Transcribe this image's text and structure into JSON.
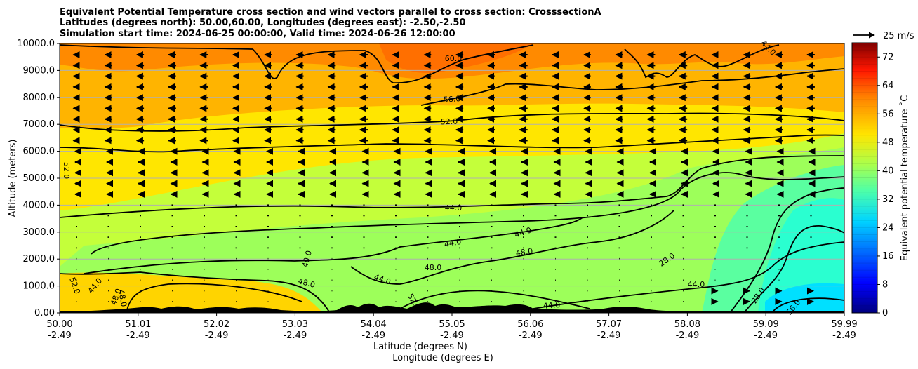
{
  "chart_data": {
    "type": "cross-section",
    "title_lines": [
      "Equivalent Potential Temperature cross section and wind vectors parallel to cross section: CrosssectionA",
      "Latitudes (degrees north): 50.00,60.00, Longitudes (degrees east): -2.50,-2.50",
      "Simulation start time: 2024-06-25 00:00:00, Valid time: 2024-06-26 12:00:00"
    ],
    "ylabel": "Altitude (meters)",
    "ylim": [
      0,
      10000
    ],
    "y_ticks": [
      "0.00",
      "1000.0",
      "2000.0",
      "3000.0",
      "4000.0",
      "5000.0",
      "6000.0",
      "7000.0",
      "8000.0",
      "9000.0",
      "10000.0"
    ],
    "x_ticks": [
      {
        "lat": "50.00",
        "lon": "-2.49"
      },
      {
        "lat": "51.01",
        "lon": "-2.49"
      },
      {
        "lat": "52.02",
        "lon": "-2.49"
      },
      {
        "lat": "53.03",
        "lon": "-2.49"
      },
      {
        "lat": "54.04",
        "lon": "-2.49"
      },
      {
        "lat": "55.05",
        "lon": "-2.49"
      },
      {
        "lat": "56.06",
        "lon": "-2.49"
      },
      {
        "lat": "57.07",
        "lon": "-2.49"
      },
      {
        "lat": "58.08",
        "lon": "-2.49"
      },
      {
        "lat": "59.09",
        "lon": "-2.49"
      },
      {
        "lat": "59.99",
        "lon": "-2.49"
      }
    ],
    "xlabel_lat": "Latitude (degrees N)",
    "xlabel_lon": "Longitude (degrees E)",
    "colorbar": {
      "label": "Equivalent potential temperature ˚C",
      "min": 0,
      "max": 76,
      "ticks": [
        "0",
        "8",
        "16",
        "24",
        "32",
        "40",
        "48",
        "56",
        "64",
        "72"
      ]
    },
    "quiver_key": {
      "label": "25 m/s",
      "speed": 25
    },
    "contour_labels": [
      "60.0",
      "56.0",
      "52.0",
      "52.0",
      "44.0",
      "44.0",
      "44.0",
      "48.0",
      "48.0",
      "48.0",
      "44.0",
      "40.0",
      "44.0",
      "48.0",
      "52.0",
      "48.0",
      "52.0",
      "44.0",
      "44.0",
      "28.0",
      "28.0",
      "56.0",
      "44.0"
    ]
  }
}
